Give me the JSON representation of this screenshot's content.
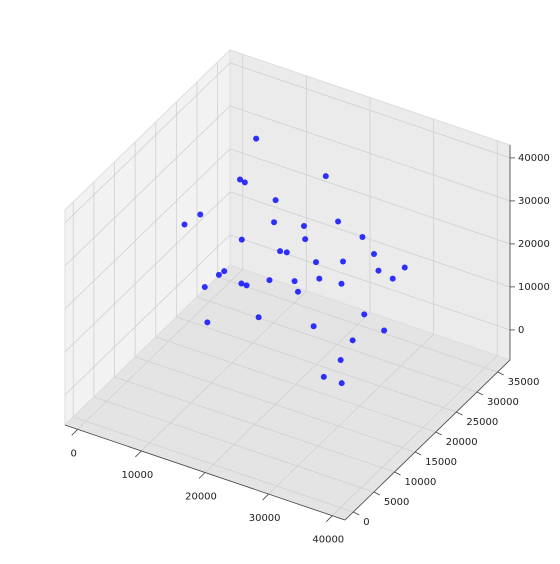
{
  "chart_data": {
    "type": "scatter3d",
    "color": "#0000ff",
    "x": [
      5000,
      8000,
      12000,
      15000,
      18000,
      20000,
      22000,
      25000,
      28000,
      30000,
      33000,
      35000,
      6000,
      10000,
      14000,
      17000,
      21000,
      24000,
      27000,
      31000,
      9000,
      13000,
      16000,
      19000,
      23000,
      26000,
      29000,
      32000,
      11000,
      20000,
      7000,
      15000,
      22000,
      27000,
      34000,
      12000,
      18000,
      25000,
      30000,
      16000
    ],
    "y": [
      20000,
      25000,
      15000,
      30000,
      10000,
      22000,
      28000,
      18000,
      12000,
      26000,
      20000,
      8000,
      32000,
      14000,
      24000,
      6000,
      19000,
      30000,
      16000,
      22000,
      10000,
      27000,
      13000,
      33000,
      9000,
      21000,
      17000,
      25000,
      29000,
      11000,
      18000,
      35000,
      5000,
      23000,
      15000,
      20000,
      28000,
      12000,
      31000,
      24000
    ],
    "z": [
      25000,
      30000,
      20000,
      15000,
      35000,
      28000,
      10000,
      22000,
      18000,
      5000,
      26000,
      12000,
      32000,
      8000,
      24000,
      30000,
      16000,
      20000,
      2000,
      27000,
      34000,
      14000,
      21000,
      9000,
      29000,
      33000,
      6000,
      19000,
      23000,
      17000,
      11000,
      25000,
      31000,
      4000,
      21000,
      36000,
      13000,
      27000,
      15000,
      18000
    ],
    "xlim": [
      -2000,
      42000
    ],
    "ylim": [
      -2000,
      38000
    ],
    "zlim": [
      -7000,
      43000
    ],
    "xticks": [
      0,
      10000,
      20000,
      30000,
      40000
    ],
    "yticks": [
      0,
      5000,
      10000,
      15000,
      20000,
      25000,
      30000,
      35000
    ],
    "zticks": [
      0,
      10000,
      20000,
      30000,
      40000
    ],
    "grid": true
  }
}
